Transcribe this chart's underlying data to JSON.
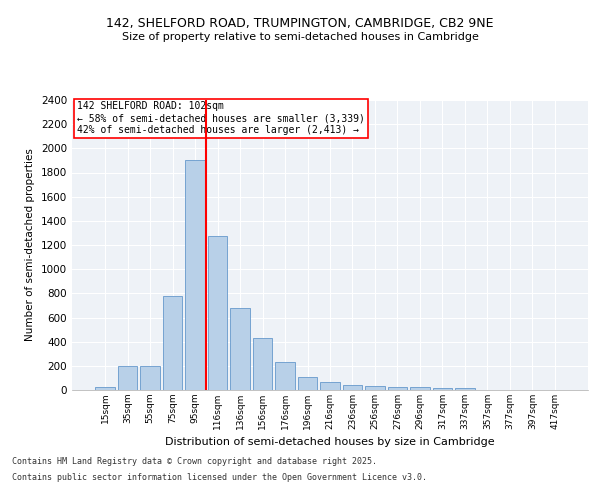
{
  "title1": "142, SHELFORD ROAD, TRUMPINGTON, CAMBRIDGE, CB2 9NE",
  "title2": "Size of property relative to semi-detached houses in Cambridge",
  "xlabel": "Distribution of semi-detached houses by size in Cambridge",
  "ylabel": "Number of semi-detached properties",
  "categories": [
    "15sqm",
    "35sqm",
    "55sqm",
    "75sqm",
    "95sqm",
    "116sqm",
    "136sqm",
    "156sqm",
    "176sqm",
    "196sqm",
    "216sqm",
    "236sqm",
    "256sqm",
    "276sqm",
    "296sqm",
    "317sqm",
    "337sqm",
    "357sqm",
    "377sqm",
    "397sqm",
    "417sqm"
  ],
  "values": [
    25,
    200,
    200,
    775,
    1900,
    1275,
    680,
    430,
    230,
    110,
    65,
    45,
    30,
    25,
    25,
    20,
    15,
    0,
    0,
    0,
    0
  ],
  "bar_color": "#b8d0e8",
  "bar_edge_color": "#6699cc",
  "vline_color": "red",
  "annotation_title": "142 SHELFORD ROAD: 102sqm",
  "annotation_line1": "← 58% of semi-detached houses are smaller (3,339)",
  "annotation_line2": "42% of semi-detached houses are larger (2,413) →",
  "ylim": [
    0,
    2400
  ],
  "yticks": [
    0,
    200,
    400,
    600,
    800,
    1000,
    1200,
    1400,
    1600,
    1800,
    2000,
    2200,
    2400
  ],
  "bg_color": "#ffffff",
  "plot_bg_color": "#eef2f7",
  "grid_color": "#ffffff",
  "footer1": "Contains HM Land Registry data © Crown copyright and database right 2025.",
  "footer2": "Contains public sector information licensed under the Open Government Licence v3.0."
}
